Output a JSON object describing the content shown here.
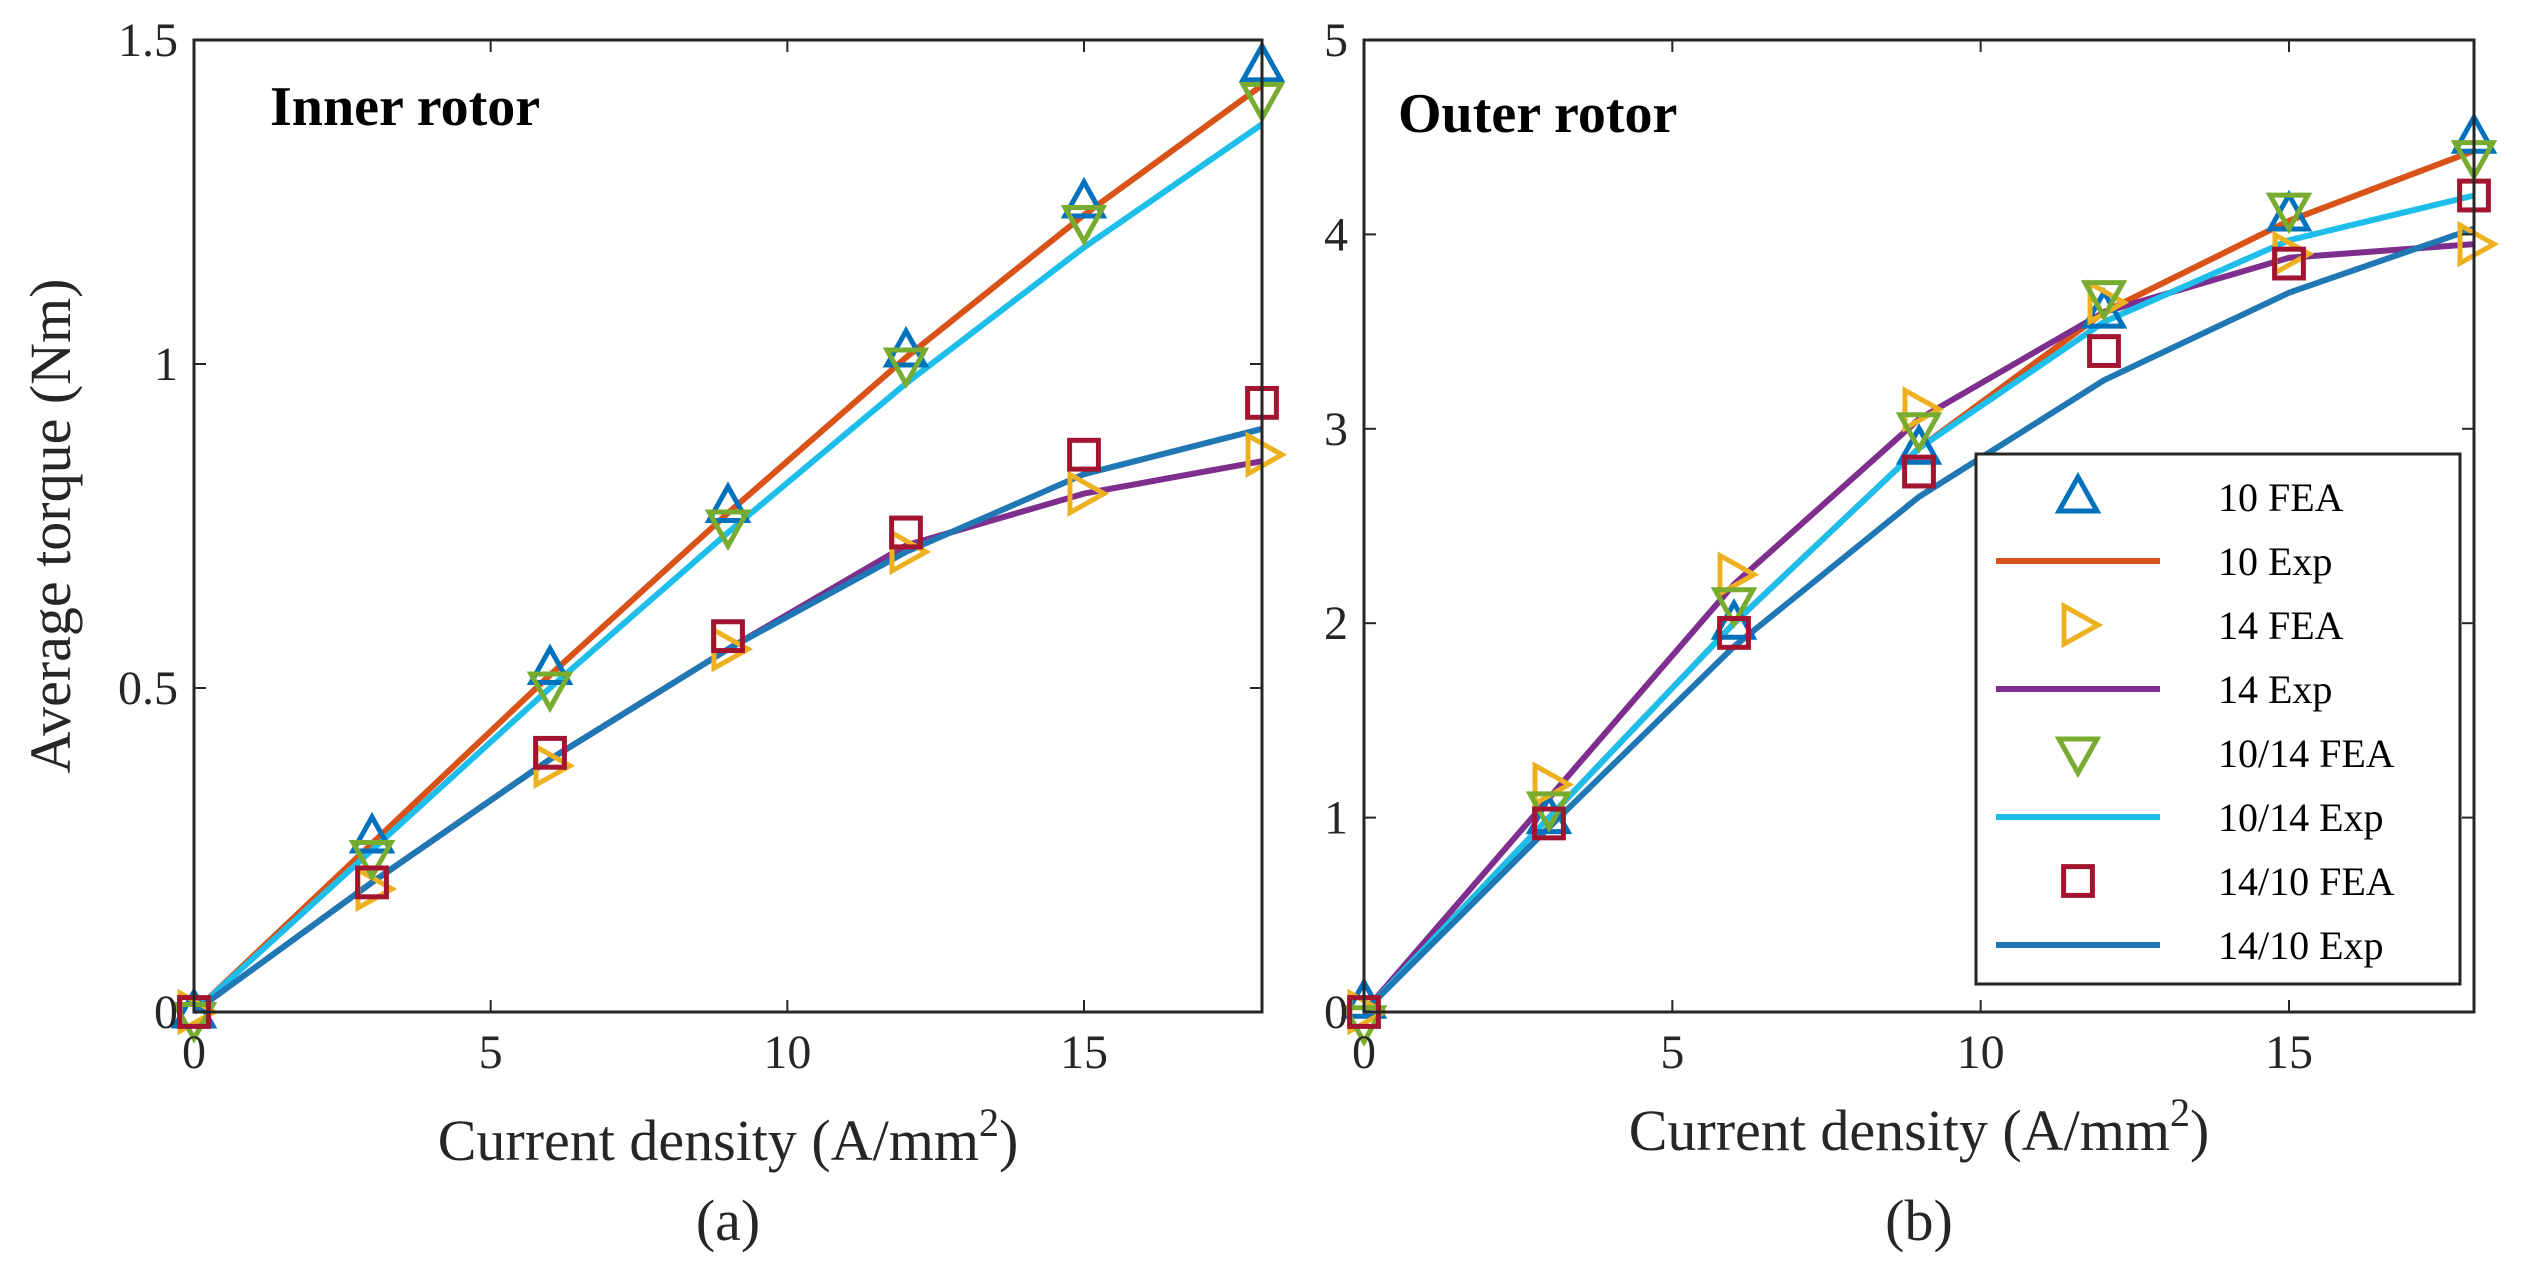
{
  "chart_data": [
    {
      "type": "line",
      "title": "Inner rotor",
      "caption": "(a)",
      "xlabel": "Current density (A/mm",
      "xlabel_sup": "2",
      "xlabel_end": ")",
      "ylabel": "Average torque (Nm)",
      "xlim": [
        0,
        18
      ],
      "ylim": [
        0,
        1.5
      ],
      "xticks": [
        0,
        5,
        10,
        15
      ],
      "xtick_labels": [
        "0",
        "5",
        "10",
        "15"
      ],
      "yticks": [
        0,
        0.5,
        1,
        1.5
      ],
      "ytick_labels": [
        "0",
        "0.5",
        "1",
        "1.5"
      ],
      "x": [
        0,
        3,
        6,
        9,
        12,
        15,
        18
      ],
      "series": [
        {
          "name": "10 FEA",
          "kind": "marker",
          "marker": "triangle-up",
          "color": "#0072bd",
          "values": [
            0,
            0.27,
            0.53,
            0.78,
            1.02,
            1.25,
            1.46
          ]
        },
        {
          "name": "10 Exp",
          "kind": "line",
          "color": "#d95319",
          "values": [
            0,
            0.26,
            0.52,
            0.77,
            1.01,
            1.23,
            1.43
          ]
        },
        {
          "name": "14 FEA",
          "kind": "marker",
          "marker": "triangle-right",
          "color": "#edb120",
          "values": [
            0,
            0.19,
            0.38,
            0.56,
            0.71,
            0.8,
            0.86
          ]
        },
        {
          "name": "14 Exp",
          "kind": "line",
          "color": "#7e2f8e",
          "values": [
            0,
            0.2,
            0.39,
            0.56,
            0.72,
            0.8,
            0.85
          ]
        },
        {
          "name": "10/14 FEA",
          "kind": "marker",
          "marker": "triangle-down",
          "color": "#77ac30",
          "values": [
            -0.01,
            0.24,
            0.5,
            0.75,
            1.0,
            1.22,
            1.41
          ]
        },
        {
          "name": "10/14 Exp",
          "kind": "line",
          "color": "#1ebeeb",
          "values": [
            0,
            0.25,
            0.5,
            0.74,
            0.97,
            1.18,
            1.37
          ]
        },
        {
          "name": "14/10 FEA",
          "kind": "marker",
          "marker": "square",
          "color": "#a2142f",
          "values": [
            0,
            0.2,
            0.4,
            0.58,
            0.74,
            0.86,
            0.94
          ]
        },
        {
          "name": "14/10 Exp",
          "kind": "line",
          "color": "#1f77b4",
          "values": [
            0,
            0.2,
            0.39,
            0.56,
            0.71,
            0.83,
            0.9
          ]
        }
      ]
    },
    {
      "type": "line",
      "title": "Outer rotor",
      "caption": "(b)",
      "xlabel": "Current density (A/mm",
      "xlabel_sup": "2",
      "xlabel_end": ")",
      "ylabel": "",
      "xlim": [
        0,
        18
      ],
      "ylim": [
        0,
        5
      ],
      "xticks": [
        0,
        5,
        10,
        15
      ],
      "xtick_labels": [
        "0",
        "5",
        "10",
        "15"
      ],
      "yticks": [
        0,
        1,
        2,
        3,
        4,
        5
      ],
      "ytick_labels": [
        "0",
        "1",
        "2",
        "3",
        "4",
        "5"
      ],
      "legend_position": "lower-right",
      "x": [
        0,
        3,
        6,
        9,
        12,
        15,
        18
      ],
      "series": [
        {
          "name": "10 FEA",
          "kind": "marker",
          "marker": "triangle-up",
          "color": "#0072bd",
          "values": [
            0.05,
            1.0,
            2.0,
            2.9,
            3.6,
            4.1,
            4.5
          ]
        },
        {
          "name": "10 Exp",
          "kind": "line",
          "color": "#d95319",
          "values": [
            0,
            1.0,
            2.0,
            2.9,
            3.6,
            4.07,
            4.43
          ]
        },
        {
          "name": "14 FEA",
          "kind": "marker",
          "marker": "triangle-right",
          "color": "#edb120",
          "values": [
            0,
            1.17,
            2.25,
            3.1,
            3.65,
            3.9,
            3.95
          ]
        },
        {
          "name": "14 Exp",
          "kind": "line",
          "color": "#7e2f8e",
          "values": [
            0,
            1.1,
            2.2,
            3.05,
            3.6,
            3.88,
            3.95
          ]
        },
        {
          "name": "10/14 FEA",
          "kind": "marker",
          "marker": "triangle-down",
          "color": "#77ac30",
          "values": [
            -0.05,
            1.05,
            2.1,
            3.0,
            3.68,
            4.13,
            4.4
          ]
        },
        {
          "name": "10/14 Exp",
          "kind": "line",
          "color": "#1ebeeb",
          "values": [
            0,
            1.0,
            2.0,
            2.9,
            3.55,
            3.97,
            4.2
          ]
        },
        {
          "name": "14/10 FEA",
          "kind": "marker",
          "marker": "square",
          "color": "#a2142f",
          "values": [
            0,
            0.97,
            1.95,
            2.78,
            3.4,
            3.85,
            4.2
          ]
        },
        {
          "name": "14/10 Exp",
          "kind": "line",
          "color": "#1f77b4",
          "values": [
            0,
            0.95,
            1.88,
            2.65,
            3.25,
            3.7,
            4.03
          ]
        }
      ]
    }
  ]
}
